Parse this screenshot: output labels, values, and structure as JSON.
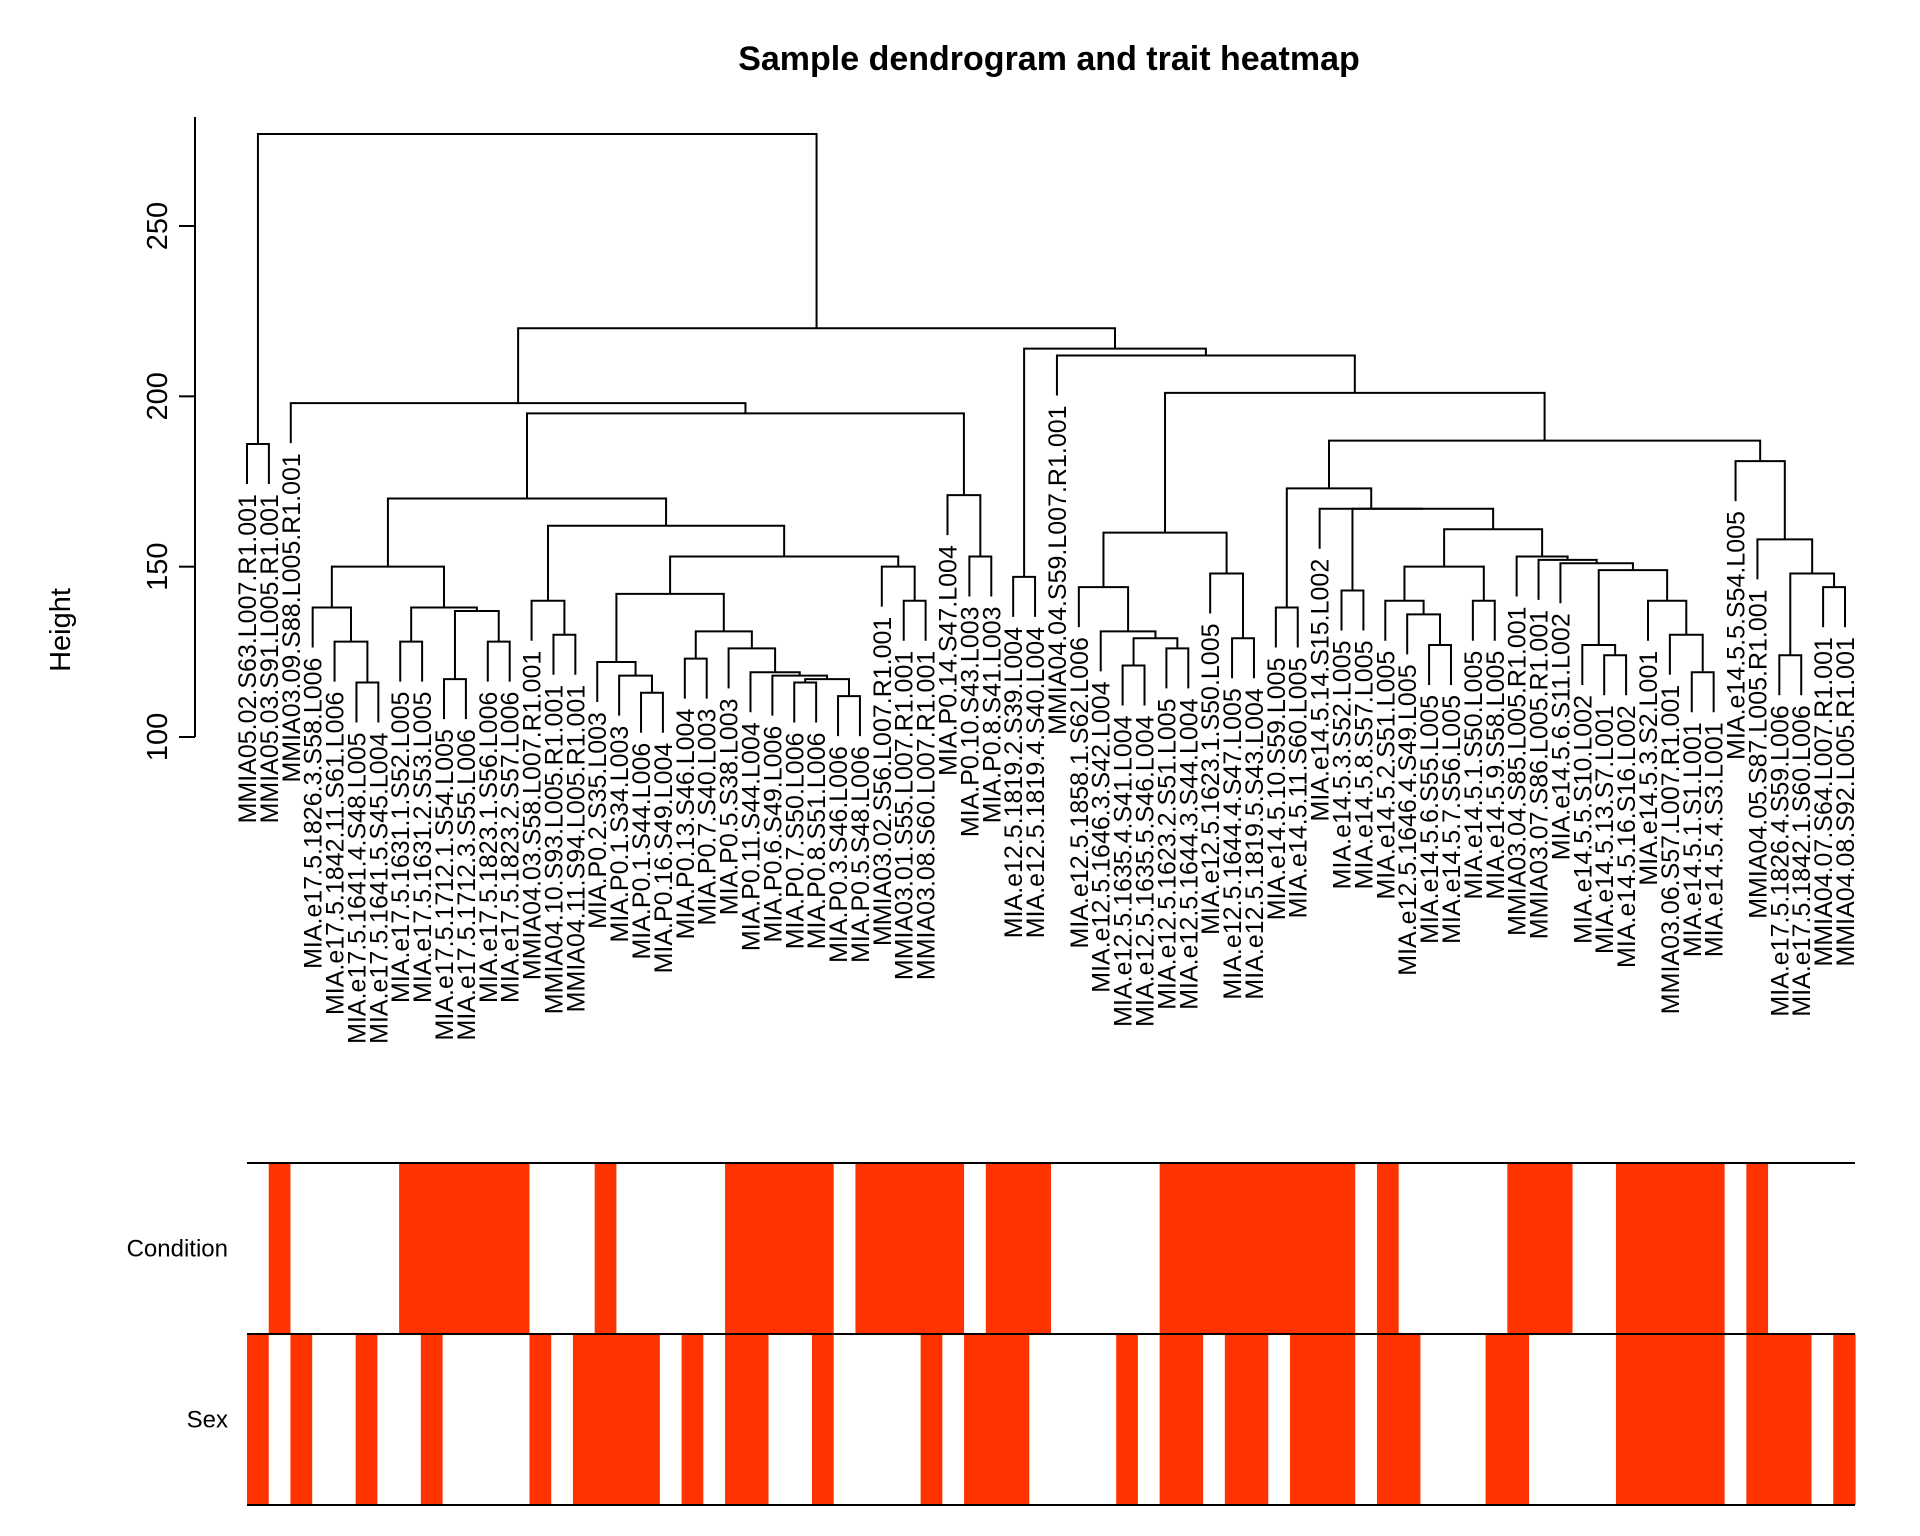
{
  "chart_data": {
    "type": "dendrogram-heatmap",
    "title": "Sample dendrogram and trait heatmap",
    "ylabel": "Height",
    "y_ticks": [
      100,
      150,
      200,
      250
    ],
    "ylim": [
      100,
      282
    ],
    "trait_rows": [
      "Condition",
      "Sex"
    ],
    "trait_color": "#ff3300",
    "absent_color": "#ffffff",
    "leaves": [
      "MMIA05.02.S63.L007.R1.001",
      "MMIA05.03.S91.L005.R1.001",
      "MMIA03.09.S88.L005.R1.001",
      "MIA.e17.5.1826.3.S58.L006",
      "MIA.e17.5.1842.11.S61.L006",
      "MIA.e17.5.1641.4.S48.L005",
      "MIA.e17.5.1641.5.S45.L004",
      "MIA.e17.5.1631.1.S52.L005",
      "MIA.e17.5.1631.2.S53.L005",
      "MIA.e17.5.1712.1.S54.L005",
      "MIA.e17.5.1712.3.S55.L006",
      "MIA.e17.5.1823.1.S56.L006",
      "MIA.e17.5.1823.2.S57.L006",
      "MMIA04.03.S58.L007.R1.001",
      "MMIA04.10.S93.L005.R1.001",
      "MMIA04.11.S94.L005.R1.001",
      "MIA.P0.2.S35.L003",
      "MIA.P0.1.S34.L003",
      "MIA.P0.1.S44.L006",
      "MIA.P0.16.S49.L004",
      "MIA.P0.13.S46.L004",
      "MIA.P0.7.S40.L003",
      "MIA.P0.5.S38.L003",
      "MIA.P0.11.S44.L004",
      "MIA.P0.6.S49.L006",
      "MIA.P0.7.S50.L006",
      "MIA.P0.8.S51.L006",
      "MIA.P0.3.S46.L006",
      "MIA.P0.5.S48.L006",
      "MMIA03.02.S56.L007.R1.001",
      "MMIA03.01.S55.L007.R1.001",
      "MMIA03.08.S60.L007.R1.001",
      "MIA.P0.14.S47.L004",
      "MIA.P0.10.S43.L003",
      "MIA.P0.8.S41.L003",
      "MIA.e12.5.1819.2.S39.L004",
      "MIA.e12.5.1819.4.S40.L004",
      "MMIA04.04.S59.L007.R1.001",
      "MIA.e12.5.1858.1.S62.L006",
      "MIA.e12.5.1646.3.S42.L004",
      "MIA.e12.5.1635.4.S41.L004",
      "MIA.e12.5.1635.5.S46.L004",
      "MIA.e12.5.1623.2.S51.L005",
      "MIA.e12.5.1644.3.S44.L004",
      "MIA.e12.5.1623.1.S50.L005",
      "MIA.e12.5.1644.4.S47.L005",
      "MIA.e12.5.1819.5.S43.L004",
      "MIA.e14.5.10.S59.L005",
      "MIA.e14.5.11.S60.L005",
      "MIA.e14.5.14.S15.L002",
      "MIA.e14.5.3.S52.L005",
      "MIA.e14.5.8.S57.L005",
      "MIA.e14.5.2.S51.L005",
      "MIA.e12.5.1646.4.S49.L005",
      "MIA.e14.5.6.S55.L005",
      "MIA.e14.5.7.S56.L005",
      "MIA.e14.5.1.S50.L005",
      "MIA.e14.5.9.S58.L005",
      "MMIA03.04.S85.L005.R1.001",
      "MMIA03.07.S86.L005.R1.001",
      "MIA.e14.5.6.S11.L002",
      "MIA.e14.5.5.S10.L002",
      "MIA.e14.5.13.S7.L001",
      "MIA.e14.5.16.S16.L002",
      "MIA.e14.5.3.S2.L001",
      "MMIA03.06.S57.L007.R1.001",
      "MIA.e14.5.1.S1.L001",
      "MIA.e14.5.4.S3.L001",
      "MIA.e14.5.5.S54.L005",
      "MMIA04.05.S87.L005.R1.001",
      "MIA.e17.5.1826.4.S59.L006",
      "MIA.e17.5.1842.1.S60.L006",
      "MMIA04.07.S64.L007.R1.001",
      "MMIA04.08.S92.L005.R1.001"
    ],
    "merges": [
      {
        "left": "MMIA05.02.S63.L007.R1.001",
        "right": "MMIA05.03.S91.L005.R1.001",
        "height": 186
      },
      {
        "left": "MIA.e17.5.1641.4.S48.L005",
        "right": "MIA.e17.5.1641.5.S45.L004",
        "height": 116
      },
      {
        "left": "MIA.e17.5.1842.11.S61.L006",
        "right": "m2",
        "height": 128
      },
      {
        "left": "MIA.e17.5.1826.3.S58.L006",
        "right": "m3",
        "height": 138
      },
      {
        "left": "MIA.e17.5.1631.1.S52.L005",
        "right": "MIA.e17.5.1631.2.S53.L005",
        "height": 128
      },
      {
        "left": "MIA.e17.5.1712.1.S54.L005",
        "right": "MIA.e17.5.1712.3.S55.L006",
        "height": 117
      },
      {
        "left": "MIA.e17.5.1823.1.S56.L006",
        "right": "MIA.e17.5.1823.2.S57.L006",
        "height": 128
      },
      {
        "left": "m6",
        "right": "m7",
        "height": 137
      },
      {
        "left": "m5",
        "right": "m8",
        "height": 138
      },
      {
        "left": "m4",
        "right": "m9",
        "height": 150
      },
      {
        "left": "MMIA04.10.S93.L005.R1.001",
        "right": "MMIA04.11.S94.L005.R1.001",
        "height": 130
      },
      {
        "left": "MMIA04.03.S58.L007.R1.001",
        "right": "m11",
        "height": 140
      },
      {
        "left": "MIA.P0.1.S44.L006",
        "right": "MIA.P0.16.S49.L004",
        "height": 113
      },
      {
        "left": "MIA.P0.1.S34.L003",
        "right": "m13",
        "height": 118
      },
      {
        "left": "MIA.P0.2.S35.L003",
        "right": "m14",
        "height": 122
      },
      {
        "left": "MIA.P0.13.S46.L004",
        "right": "MIA.P0.7.S40.L003",
        "height": 123
      },
      {
        "left": "MIA.P0.7.S50.L006",
        "right": "MIA.P0.8.S51.L006",
        "height": 116
      },
      {
        "left": "MIA.P0.3.S46.L006",
        "right": "MIA.P0.5.S48.L006",
        "height": 112
      },
      {
        "left": "m17",
        "right": "m18",
        "height": 117
      },
      {
        "left": "MIA.P0.6.S49.L006",
        "right": "m19",
        "height": 118
      },
      {
        "left": "MIA.P0.11.S44.L004",
        "right": "m20",
        "height": 119
      },
      {
        "left": "MIA.P0.5.S38.L003",
        "right": "m21",
        "height": 126
      },
      {
        "left": "m16",
        "right": "m22",
        "height": 131
      },
      {
        "left": "m15",
        "right": "m23",
        "height": 142
      },
      {
        "left": "MMIA03.01.S55.L007.R1.001",
        "right": "MMIA03.08.S60.L007.R1.001",
        "height": 140
      },
      {
        "left": "MMIA03.02.S56.L007.R1.001",
        "right": "m25",
        "height": 150
      },
      {
        "left": "m24",
        "right": "m26",
        "height": 153
      },
      {
        "left": "m12",
        "right": "m27",
        "height": 162
      },
      {
        "left": "m10",
        "right": "m28",
        "height": 170
      },
      {
        "left": "MIA.P0.10.S43.L003",
        "right": "MIA.P0.8.S41.L003",
        "height": 153
      },
      {
        "left": "MIA.P0.14.S47.L004",
        "right": "m30",
        "height": 171
      },
      {
        "left": "m29",
        "right": "m31",
        "height": 195
      },
      {
        "left": "MMIA03.09.S88.L005.R1.001",
        "right": "m32",
        "height": 198
      },
      {
        "left": "MIA.e12.5.1819.2.S39.L004",
        "right": "MIA.e12.5.1819.4.S40.L004",
        "height": 147
      },
      {
        "left": "MIA.e12.5.1635.4.S41.L004",
        "right": "MIA.e12.5.1635.5.S46.L004",
        "height": 121
      },
      {
        "left": "MIA.e12.5.1623.2.S51.L005",
        "right": "MIA.e12.5.1644.3.S44.L004",
        "height": 126
      },
      {
        "left": "m35",
        "right": "m36",
        "height": 129
      },
      {
        "left": "MIA.e12.5.1646.3.S42.L004",
        "right": "m37",
        "height": 131
      },
      {
        "left": "MIA.e12.5.1858.1.S62.L006",
        "right": "m38",
        "height": 144
      },
      {
        "left": "MIA.e12.5.1644.4.S47.L005",
        "right": "MIA.e12.5.1819.5.S43.L004",
        "height": 129
      },
      {
        "left": "MIA.e12.5.1623.1.S50.L005",
        "right": "m40",
        "height": 148
      },
      {
        "left": "m39",
        "right": "m41",
        "height": 160
      },
      {
        "left": "MIA.e14.5.10.S59.L005",
        "right": "MIA.e14.5.11.S60.L005",
        "height": 138
      },
      {
        "left": "MIA.e14.5.3.S52.L005",
        "right": "MIA.e14.5.8.S57.L005",
        "height": 143
      },
      {
        "left": "MIA.e14.5.6.S55.L005",
        "right": "MIA.e14.5.7.S56.L005",
        "height": 127
      },
      {
        "left": "MIA.e12.5.1646.4.S49.L005",
        "right": "m45",
        "height": 136
      },
      {
        "left": "MIA.e14.5.2.S51.L005",
        "right": "m46",
        "height": 140
      },
      {
        "left": "MIA.e14.5.1.S50.L005",
        "right": "MIA.e14.5.9.S58.L005",
        "height": 140
      },
      {
        "left": "m47",
        "right": "m48",
        "height": 150
      },
      {
        "left": "MIA.e14.5.13.S7.L001",
        "right": "MIA.e14.5.16.S16.L002",
        "height": 124
      },
      {
        "left": "MIA.e14.5.5.S10.L002",
        "right": "m50",
        "height": 127
      },
      {
        "left": "MIA.e14.5.1.S1.L001",
        "right": "MIA.e14.5.4.S3.L001",
        "height": 119
      },
      {
        "left": "MMIA03.06.S57.L007.R1.001",
        "right": "m52",
        "height": 130
      },
      {
        "left": "MIA.e14.5.3.S2.L001",
        "right": "m53",
        "height": 140
      },
      {
        "left": "m51",
        "right": "m54",
        "height": 149
      },
      {
        "left": "MIA.e14.5.6.S11.L002",
        "right": "m55",
        "height": 151
      },
      {
        "left": "MMIA03.07.S86.L005.R1.001",
        "right": "m56",
        "height": 152
      },
      {
        "left": "MMIA03.04.S85.L005.R1.001",
        "right": "m57",
        "height": 153
      },
      {
        "left": "m49",
        "right": "m58",
        "height": 161
      },
      {
        "left": "m44",
        "right": "m59",
        "height": 167
      },
      {
        "left": "MIA.e14.5.14.S15.L002",
        "right": "m60",
        "height": 167
      },
      {
        "left": "m43",
        "right": "m61",
        "height": 173
      },
      {
        "left": "MIA.e17.5.1826.4.S59.L006",
        "right": "MIA.e17.5.1842.1.S60.L006",
        "height": 124
      },
      {
        "left": "MMIA04.07.S64.L007.R1.001",
        "right": "MMIA04.08.S92.L005.R1.001",
        "height": 144
      },
      {
        "left": "m63",
        "right": "m64",
        "height": 148
      },
      {
        "left": "MMIA04.05.S87.L005.R1.001",
        "right": "m65",
        "height": 158
      },
      {
        "left": "MIA.e14.5.5.S54.L005",
        "right": "m66",
        "height": 181
      },
      {
        "left": "m62",
        "right": "m67",
        "height": 187
      },
      {
        "left": "m42",
        "right": "m68",
        "height": 201
      },
      {
        "left": "MMIA04.04.S59.L007.R1.001",
        "right": "m69",
        "height": 212
      },
      {
        "left": "m34",
        "right": "m70",
        "height": 214
      },
      {
        "left": "m33",
        "right": "m71",
        "height": 220
      },
      {
        "left": "m1",
        "right": "m72",
        "height": 277
      }
    ],
    "condition": [
      0,
      1,
      0,
      0,
      0,
      0,
      0,
      1,
      1,
      1,
      1,
      1,
      1,
      0,
      0,
      0,
      1,
      0,
      0,
      0,
      0,
      0,
      1,
      1,
      1,
      1,
      1,
      0,
      1,
      1,
      1,
      1,
      1,
      0,
      1,
      1,
      1,
      0,
      0,
      0,
      0,
      0,
      1,
      1,
      1,
      1,
      1,
      1,
      1,
      1,
      1,
      0,
      1,
      0,
      0,
      0,
      0,
      0,
      1,
      1,
      1,
      0,
      0,
      1,
      1,
      1,
      1,
      1,
      0,
      1,
      0,
      0,
      0,
      0
    ],
    "sex": [
      1,
      0,
      1,
      0,
      0,
      1,
      0,
      0,
      1,
      0,
      0,
      0,
      0,
      1,
      0,
      1,
      1,
      1,
      1,
      0,
      1,
      0,
      1,
      1,
      0,
      0,
      1,
      0,
      0,
      0,
      0,
      1,
      0,
      1,
      1,
      1,
      0,
      0,
      0,
      0,
      1,
      0,
      1,
      1,
      0,
      1,
      1,
      0,
      1,
      1,
      1,
      0,
      1,
      1,
      0,
      0,
      0,
      1,
      1,
      0,
      0,
      0,
      0,
      1,
      1,
      1,
      1,
      1,
      0,
      1,
      1,
      1,
      0,
      1
    ]
  }
}
